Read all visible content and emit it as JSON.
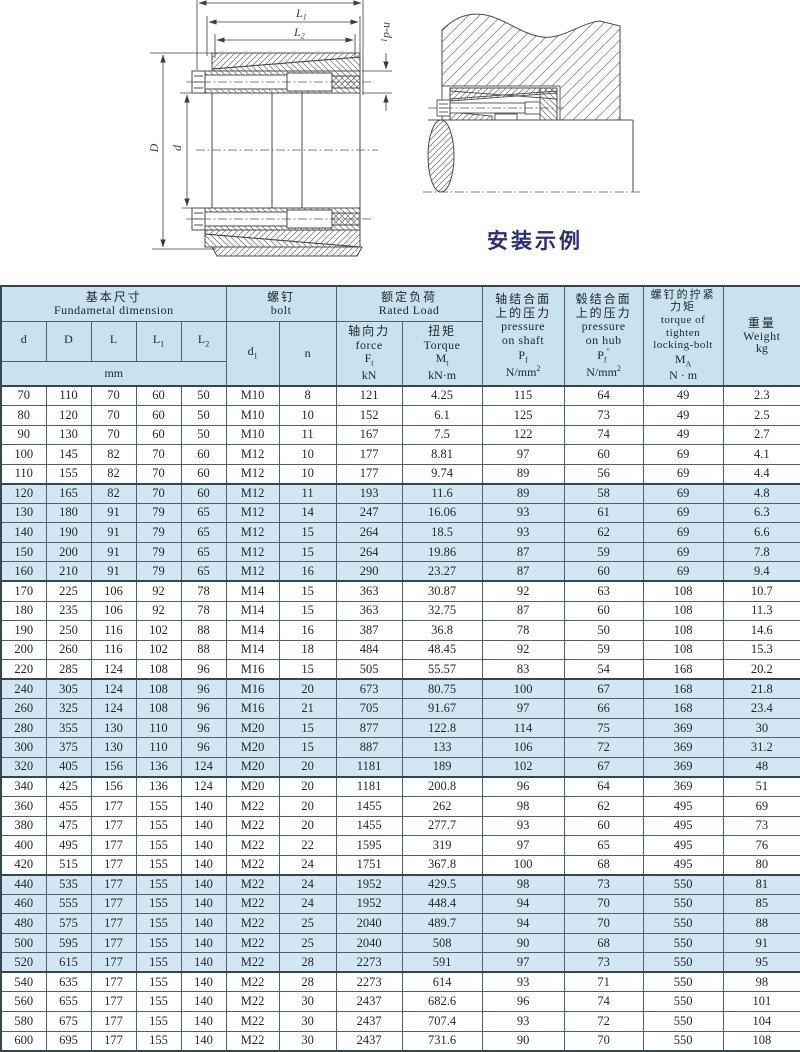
{
  "colors": {
    "band": "#d2e7f3",
    "headerBg": "#c9e2f0",
    "border": "#4a636d",
    "borderHeavy": "#324750",
    "caption": "#2b2b80"
  },
  "diagram": {
    "caption": "安装示例",
    "labels": {
      "L1": {
        "base": "L",
        "sub": "1"
      },
      "L2": {
        "base": "L",
        "sub": "2"
      },
      "nd1": {
        "base": "n-d",
        "sub": "1"
      },
      "D": "D",
      "d": "d"
    }
  },
  "table": {
    "header": {
      "basic": {
        "zh": "基本尺寸",
        "en": "Fundametal  dimension",
        "unit": "mm",
        "cols": [
          {
            "base": "d",
            "sub": ""
          },
          {
            "base": "D",
            "sub": ""
          },
          {
            "base": "L",
            "sub": ""
          },
          {
            "base": "L",
            "sub": "1"
          },
          {
            "base": "L",
            "sub": "2"
          }
        ]
      },
      "bolt": {
        "zh": "螺钉",
        "en": "bolt",
        "d1": {
          "base": "d",
          "sub": "1"
        },
        "n": "n"
      },
      "rated": {
        "zh": "额定负荷",
        "en": "Rated  Load",
        "force": {
          "zh": "轴向力",
          "en": "force",
          "sym": {
            "base": "F",
            "sub": "t"
          },
          "unit": "kN"
        },
        "torque": {
          "zh": "扭矩",
          "en": "Torque",
          "sym": {
            "base": "M",
            "sub": "t"
          },
          "unit": "kN·m"
        }
      },
      "pShaft": {
        "zh1": "轴结合面",
        "zh2": "上的压力",
        "en1": "pressure",
        "en2": "on  shaft",
        "sym": {
          "base": "P",
          "sub": "f",
          "sup": ""
        },
        "unit": "N/mm",
        "unitSup": "2"
      },
      "pHub": {
        "zh1": "毂结合面",
        "zh2": "上的压力",
        "en1": "pressure",
        "en2": "on  hub",
        "sym": {
          "base": "P",
          "sub": "f",
          "sup": "″"
        },
        "unit": "N/mm",
        "unitSup": "2"
      },
      "mTorque": {
        "zh1": "螺钉的拧紧",
        "zh2": "力矩",
        "en1": "torque of",
        "en2": "tighten",
        "en3": "locking-bolt",
        "sym": {
          "base": "M",
          "sub": "A"
        },
        "unit": "N · m"
      },
      "weight": {
        "zh": "重量",
        "en": "Weight",
        "unit": "kg"
      }
    },
    "rows": [
      [
        "70",
        "110",
        "70",
        "60",
        "50",
        "M10",
        "8",
        "121",
        "4.25",
        "115",
        "64",
        "49",
        "2.3"
      ],
      [
        "80",
        "120",
        "70",
        "60",
        "50",
        "M10",
        "10",
        "152",
        "6.1",
        "125",
        "73",
        "49",
        "2.5"
      ],
      [
        "90",
        "130",
        "70",
        "60",
        "50",
        "M10",
        "11",
        "167",
        "7.5",
        "122",
        "74",
        "49",
        "2.7"
      ],
      [
        "100",
        "145",
        "82",
        "70",
        "60",
        "M12",
        "10",
        "177",
        "8.81",
        "97",
        "60",
        "69",
        "4.1"
      ],
      [
        "110",
        "155",
        "82",
        "70",
        "60",
        "M12",
        "10",
        "177",
        "9.74",
        "89",
        "56",
        "69",
        "4.4"
      ],
      [
        "120",
        "165",
        "82",
        "70",
        "60",
        "M12",
        "11",
        "193",
        "11.6",
        "89",
        "58",
        "69",
        "4.8"
      ],
      [
        "130",
        "180",
        "91",
        "79",
        "65",
        "M12",
        "14",
        "247",
        "16.06",
        "93",
        "61",
        "69",
        "6.3"
      ],
      [
        "140",
        "190",
        "91",
        "79",
        "65",
        "M12",
        "15",
        "264",
        "18.5",
        "93",
        "62",
        "69",
        "6.6"
      ],
      [
        "150",
        "200",
        "91",
        "79",
        "65",
        "M12",
        "15",
        "264",
        "19.86",
        "87",
        "59",
        "69",
        "7.8"
      ],
      [
        "160",
        "210",
        "91",
        "79",
        "65",
        "M12",
        "16",
        "290",
        "23.27",
        "87",
        "60",
        "69",
        "9.4"
      ],
      [
        "170",
        "225",
        "106",
        "92",
        "78",
        "M14",
        "15",
        "363",
        "30.87",
        "92",
        "63",
        "108",
        "10.7"
      ],
      [
        "180",
        "235",
        "106",
        "92",
        "78",
        "M14",
        "15",
        "363",
        "32.75",
        "87",
        "60",
        "108",
        "11.3"
      ],
      [
        "190",
        "250",
        "116",
        "102",
        "88",
        "M14",
        "16",
        "387",
        "36.8",
        "78",
        "50",
        "108",
        "14.6"
      ],
      [
        "200",
        "260",
        "116",
        "102",
        "88",
        "M14",
        "18",
        "484",
        "48.45",
        "92",
        "59",
        "108",
        "15.3"
      ],
      [
        "220",
        "285",
        "124",
        "108",
        "96",
        "M16",
        "15",
        "505",
        "55.57",
        "83",
        "54",
        "168",
        "20.2"
      ],
      [
        "240",
        "305",
        "124",
        "108",
        "96",
        "M16",
        "20",
        "673",
        "80.75",
        "100",
        "67",
        "168",
        "21.8"
      ],
      [
        "260",
        "325",
        "124",
        "108",
        "96",
        "M16",
        "21",
        "705",
        "91.67",
        "97",
        "66",
        "168",
        "23.4"
      ],
      [
        "280",
        "355",
        "130",
        "110",
        "96",
        "M20",
        "15",
        "877",
        "122.8",
        "114",
        "75",
        "369",
        "30"
      ],
      [
        "300",
        "375",
        "130",
        "110",
        "96",
        "M20",
        "15",
        "887",
        "133",
        "106",
        "72",
        "369",
        "31.2"
      ],
      [
        "320",
        "405",
        "156",
        "136",
        "124",
        "M20",
        "20",
        "1181",
        "189",
        "102",
        "67",
        "369",
        "48"
      ],
      [
        "340",
        "425",
        "156",
        "136",
        "124",
        "M20",
        "20",
        "1181",
        "200.8",
        "96",
        "64",
        "369",
        "51"
      ],
      [
        "360",
        "455",
        "177",
        "155",
        "140",
        "M22",
        "20",
        "1455",
        "262",
        "98",
        "62",
        "495",
        "69"
      ],
      [
        "380",
        "475",
        "177",
        "155",
        "140",
        "M22",
        "20",
        "1455",
        "277.7",
        "93",
        "60",
        "495",
        "73"
      ],
      [
        "400",
        "495",
        "177",
        "155",
        "140",
        "M22",
        "22",
        "1595",
        "319",
        "97",
        "65",
        "495",
        "76"
      ],
      [
        "420",
        "515",
        "177",
        "155",
        "140",
        "M22",
        "24",
        "1751",
        "367.8",
        "100",
        "68",
        "495",
        "80"
      ],
      [
        "440",
        "535",
        "177",
        "155",
        "140",
        "M22",
        "24",
        "1952",
        "429.5",
        "98",
        "73",
        "550",
        "81"
      ],
      [
        "460",
        "555",
        "177",
        "155",
        "140",
        "M22",
        "24",
        "1952",
        "448.4",
        "94",
        "70",
        "550",
        "85"
      ],
      [
        "480",
        "575",
        "177",
        "155",
        "140",
        "M22",
        "25",
        "2040",
        "489.7",
        "94",
        "70",
        "550",
        "88"
      ],
      [
        "500",
        "595",
        "177",
        "155",
        "140",
        "M22",
        "25",
        "2040",
        "508",
        "90",
        "68",
        "550",
        "91"
      ],
      [
        "520",
        "615",
        "177",
        "155",
        "140",
        "M22",
        "28",
        "2273",
        "591",
        "97",
        "73",
        "550",
        "95"
      ],
      [
        "540",
        "635",
        "177",
        "155",
        "140",
        "M22",
        "28",
        "2273",
        "614",
        "93",
        "71",
        "550",
        "98"
      ],
      [
        "560",
        "655",
        "177",
        "155",
        "140",
        "M22",
        "30",
        "2437",
        "682.6",
        "96",
        "74",
        "550",
        "101"
      ],
      [
        "580",
        "675",
        "177",
        "155",
        "140",
        "M22",
        "30",
        "2437",
        "707.4",
        "93",
        "72",
        "550",
        "104"
      ],
      [
        "600",
        "695",
        "177",
        "155",
        "140",
        "M22",
        "30",
        "2437",
        "731.6",
        "90",
        "70",
        "550",
        "108"
      ]
    ]
  }
}
